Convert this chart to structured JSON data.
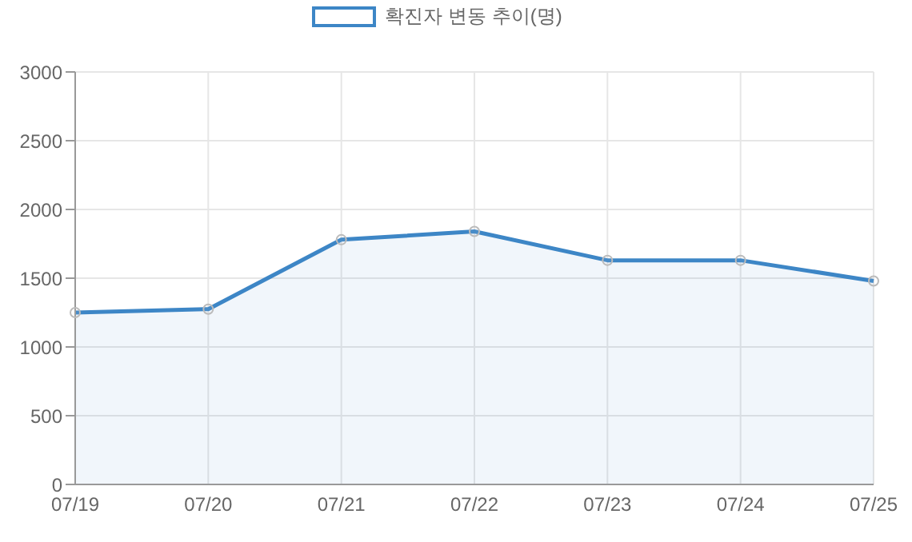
{
  "chart_data": {
    "type": "area",
    "categories": [
      "07/19",
      "07/20",
      "07/21",
      "07/22",
      "07/23",
      "07/24",
      "07/25"
    ],
    "series": [
      {
        "name": "확진자 변동 추이(명)",
        "color": "#3d86c6",
        "values": [
          1250,
          1275,
          1780,
          1840,
          1630,
          1630,
          1480
        ]
      }
    ],
    "ylim": [
      0,
      3000
    ],
    "yticks": [
      0,
      500,
      1000,
      1500,
      2000,
      2500,
      3000
    ],
    "grid": true,
    "legend": "top",
    "marker": "circle",
    "line_style": "solid"
  }
}
